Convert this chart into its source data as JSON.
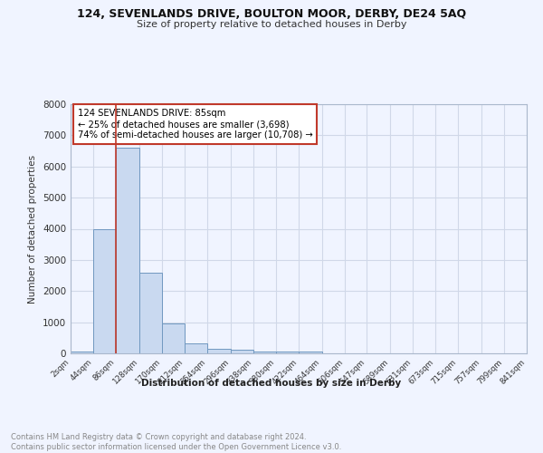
{
  "title1": "124, SEVENLANDS DRIVE, BOULTON MOOR, DERBY, DE24 5AQ",
  "title2": "Size of property relative to detached houses in Derby",
  "xlabel": "Distribution of detached houses by size in Derby",
  "ylabel": "Number of detached properties",
  "bar_edges": [
    2,
    44,
    86,
    128,
    170,
    212,
    254,
    296,
    338,
    380,
    422,
    464,
    506,
    547,
    589,
    631,
    673,
    715,
    757,
    799,
    841
  ],
  "bar_heights": [
    70,
    4000,
    6600,
    2600,
    950,
    310,
    140,
    110,
    60,
    50,
    50,
    0,
    0,
    0,
    0,
    0,
    0,
    0,
    0,
    0
  ],
  "bar_color": "#c9d9f0",
  "bar_edge_color": "#7098c0",
  "grid_color": "#d0d8e8",
  "property_size": 85,
  "vline_color": "#c0392b",
  "annotation_line1": "124 SEVENLANDS DRIVE: 85sqm",
  "annotation_line2": "← 25% of detached houses are smaller (3,698)",
  "annotation_line3": "74% of semi-detached houses are larger (10,708) →",
  "annotation_box_color": "#c0392b",
  "ylim": [
    0,
    8000
  ],
  "yticks": [
    0,
    1000,
    2000,
    3000,
    4000,
    5000,
    6000,
    7000,
    8000
  ],
  "tick_labels": [
    "2sqm",
    "44sqm",
    "86sqm",
    "128sqm",
    "170sqm",
    "212sqm",
    "254sqm",
    "296sqm",
    "338sqm",
    "380sqm",
    "422sqm",
    "464sqm",
    "506sqm",
    "547sqm",
    "589sqm",
    "631sqm",
    "673sqm",
    "715sqm",
    "757sqm",
    "799sqm",
    "841sqm"
  ],
  "footer": "Contains HM Land Registry data © Crown copyright and database right 2024.\nContains public sector information licensed under the Open Government Licence v3.0.",
  "bg_color": "#f0f4ff"
}
